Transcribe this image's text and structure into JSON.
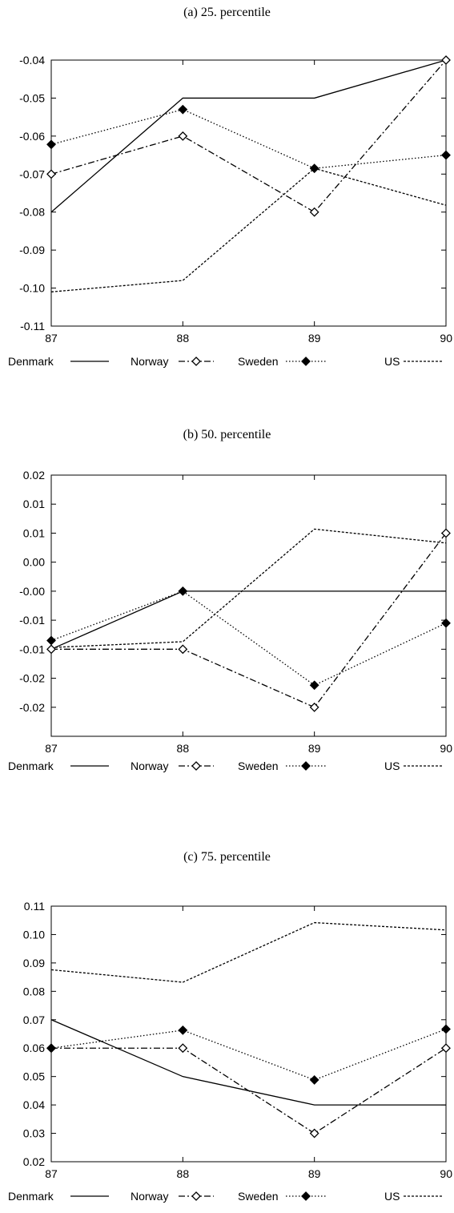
{
  "chart_data": [
    {
      "type": "line",
      "title": "(a) 25. percentile",
      "x": [
        "87",
        "88",
        "89",
        "90"
      ],
      "ylim": [
        -0.11,
        -0.04
      ],
      "yticks": [
        "-0.04",
        "-0.05",
        "-0.06",
        "-0.07",
        "-0.08",
        "-0.09",
        "-0.10",
        "-0.11"
      ],
      "ytick_values": [
        -0.04,
        -0.05,
        -0.06,
        -0.07,
        -0.08,
        -0.09,
        -0.1,
        -0.11
      ],
      "grid": false,
      "legend_position": "bottom",
      "series": [
        {
          "name": "Denmark",
          "values": [
            -0.08,
            -0.05,
            -0.05,
            -0.04
          ]
        },
        {
          "name": "Norway",
          "values": [
            -0.07,
            -0.06,
            -0.08,
            -0.04
          ]
        },
        {
          "name": "Sweden",
          "values": [
            -0.0622,
            -0.053,
            -0.0685,
            -0.065
          ]
        },
        {
          "name": "US",
          "values": [
            -0.101,
            -0.098,
            -0.0685,
            -0.0782
          ]
        }
      ]
    },
    {
      "type": "line",
      "title": "(b) 50. percentile",
      "x": [
        "87",
        "88",
        "89",
        "90"
      ],
      "ylim": [
        -0.025,
        0.02
      ],
      "yticks": [
        "0.02",
        "0.01",
        "0.01",
        "0.00",
        "-0.00",
        "-0.01",
        "-0.01",
        "-0.02",
        "-0.02"
      ],
      "ytick_values": [
        0.02,
        0.015,
        0.01,
        0.005,
        0.0,
        -0.005,
        -0.01,
        -0.015,
        -0.02
      ],
      "grid": false,
      "legend_position": "bottom",
      "series": [
        {
          "name": "Denmark",
          "values": [
            -0.01,
            0.0,
            0.0,
            0.0
          ]
        },
        {
          "name": "Norway",
          "values": [
            -0.01,
            -0.01,
            -0.02,
            0.01
          ]
        },
        {
          "name": "Sweden",
          "values": [
            -0.0085,
            0.0,
            -0.0162,
            -0.0055
          ]
        },
        {
          "name": "US",
          "values": [
            -0.0097,
            -0.0087,
            0.0107,
            0.0083
          ]
        }
      ]
    },
    {
      "type": "line",
      "title": "(c) 75. percentile",
      "x": [
        "87",
        "88",
        "89",
        "90"
      ],
      "ylim": [
        0.02,
        0.11
      ],
      "yticks": [
        "0.11",
        "0.10",
        "0.09",
        "0.08",
        "0.07",
        "0.06",
        "0.05",
        "0.04",
        "0.03",
        "0.02"
      ],
      "ytick_values": [
        0.11,
        0.1,
        0.09,
        0.08,
        0.07,
        0.06,
        0.05,
        0.04,
        0.03,
        0.02
      ],
      "grid": false,
      "legend_position": "bottom",
      "series": [
        {
          "name": "Denmark",
          "values": [
            0.07,
            0.05,
            0.04,
            0.04
          ]
        },
        {
          "name": "Norway",
          "values": [
            0.06,
            0.06,
            0.03,
            0.06
          ]
        },
        {
          "name": "Sweden",
          "values": [
            0.06,
            0.0663,
            0.0488,
            0.0667
          ]
        },
        {
          "name": "US",
          "values": [
            0.0876,
            0.0832,
            0.1042,
            0.1016
          ]
        }
      ]
    }
  ],
  "series_styles": {
    "Denmark": {
      "color": "#000000",
      "dash": "",
      "marker": "none"
    },
    "Norway": {
      "color": "#000000",
      "dash": "8 3 2 3",
      "marker": "diamond-open"
    },
    "Sweden": {
      "color": "#000000",
      "dash": "1.5 2.5",
      "marker": "diamond-filled"
    },
    "US": {
      "color": "#000000",
      "dash": "3 2",
      "marker": "none"
    }
  }
}
